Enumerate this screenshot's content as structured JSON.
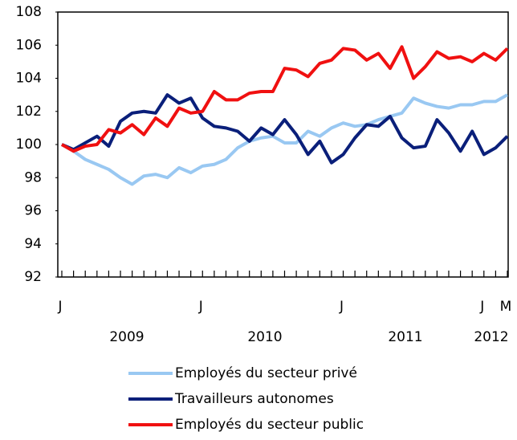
{
  "chart_data": {
    "type": "line",
    "categories": [
      "J",
      null,
      null,
      null,
      null,
      null,
      null,
      null,
      null,
      null,
      null,
      null,
      "J",
      null,
      null,
      null,
      null,
      null,
      null,
      null,
      null,
      null,
      null,
      null,
      "J",
      null,
      null,
      null,
      null,
      null,
      null,
      null,
      null,
      null,
      null,
      null,
      "J",
      null,
      "M"
    ],
    "year_labels": [
      "2009",
      "2010",
      "2011",
      "2012"
    ],
    "series": [
      {
        "name": "Employés du secteur privé",
        "color": "#99c8f2",
        "values": [
          100,
          99.6,
          99.1,
          98.8,
          98.5,
          98.0,
          97.6,
          98.1,
          98.2,
          98.0,
          98.6,
          98.3,
          98.7,
          98.8,
          99.1,
          99.8,
          100.2,
          100.4,
          100.5,
          100.1,
          100.1,
          100.8,
          100.5,
          101.0,
          101.3,
          101.1,
          101.2,
          101.5,
          101.7,
          101.9,
          102.8,
          102.5,
          102.3,
          102.2,
          102.4,
          102.4,
          102.6,
          102.6,
          103.0
        ]
      },
      {
        "name": "Travailleurs autonomes",
        "color": "#0a1f7a",
        "values": [
          100,
          99.7,
          100.1,
          100.5,
          99.9,
          101.4,
          101.9,
          102.0,
          101.9,
          103.0,
          102.5,
          102.8,
          101.6,
          101.1,
          101.0,
          100.8,
          100.2,
          101.0,
          100.6,
          101.5,
          100.6,
          99.4,
          100.2,
          98.9,
          99.4,
          100.4,
          101.2,
          101.1,
          101.7,
          100.4,
          99.8,
          99.9,
          101.5,
          100.7,
          99.6,
          100.8,
          99.4,
          99.8,
          100.5
        ]
      },
      {
        "name": "Employés du secteur public",
        "color": "#f01010",
        "values": [
          100,
          99.6,
          99.9,
          100.0,
          100.9,
          100.7,
          101.2,
          100.6,
          101.6,
          101.1,
          102.2,
          101.9,
          102.0,
          103.2,
          102.7,
          102.7,
          103.1,
          103.2,
          103.2,
          104.6,
          104.5,
          104.1,
          104.9,
          105.1,
          105.8,
          105.7,
          105.1,
          105.5,
          104.6,
          105.9,
          104.0,
          104.7,
          105.6,
          105.2,
          105.3,
          105.0,
          105.5,
          105.1,
          105.8
        ]
      }
    ],
    "ylim": [
      92,
      108
    ],
    "yticks": [
      92,
      94,
      96,
      98,
      100,
      102,
      104,
      106,
      108
    ]
  }
}
